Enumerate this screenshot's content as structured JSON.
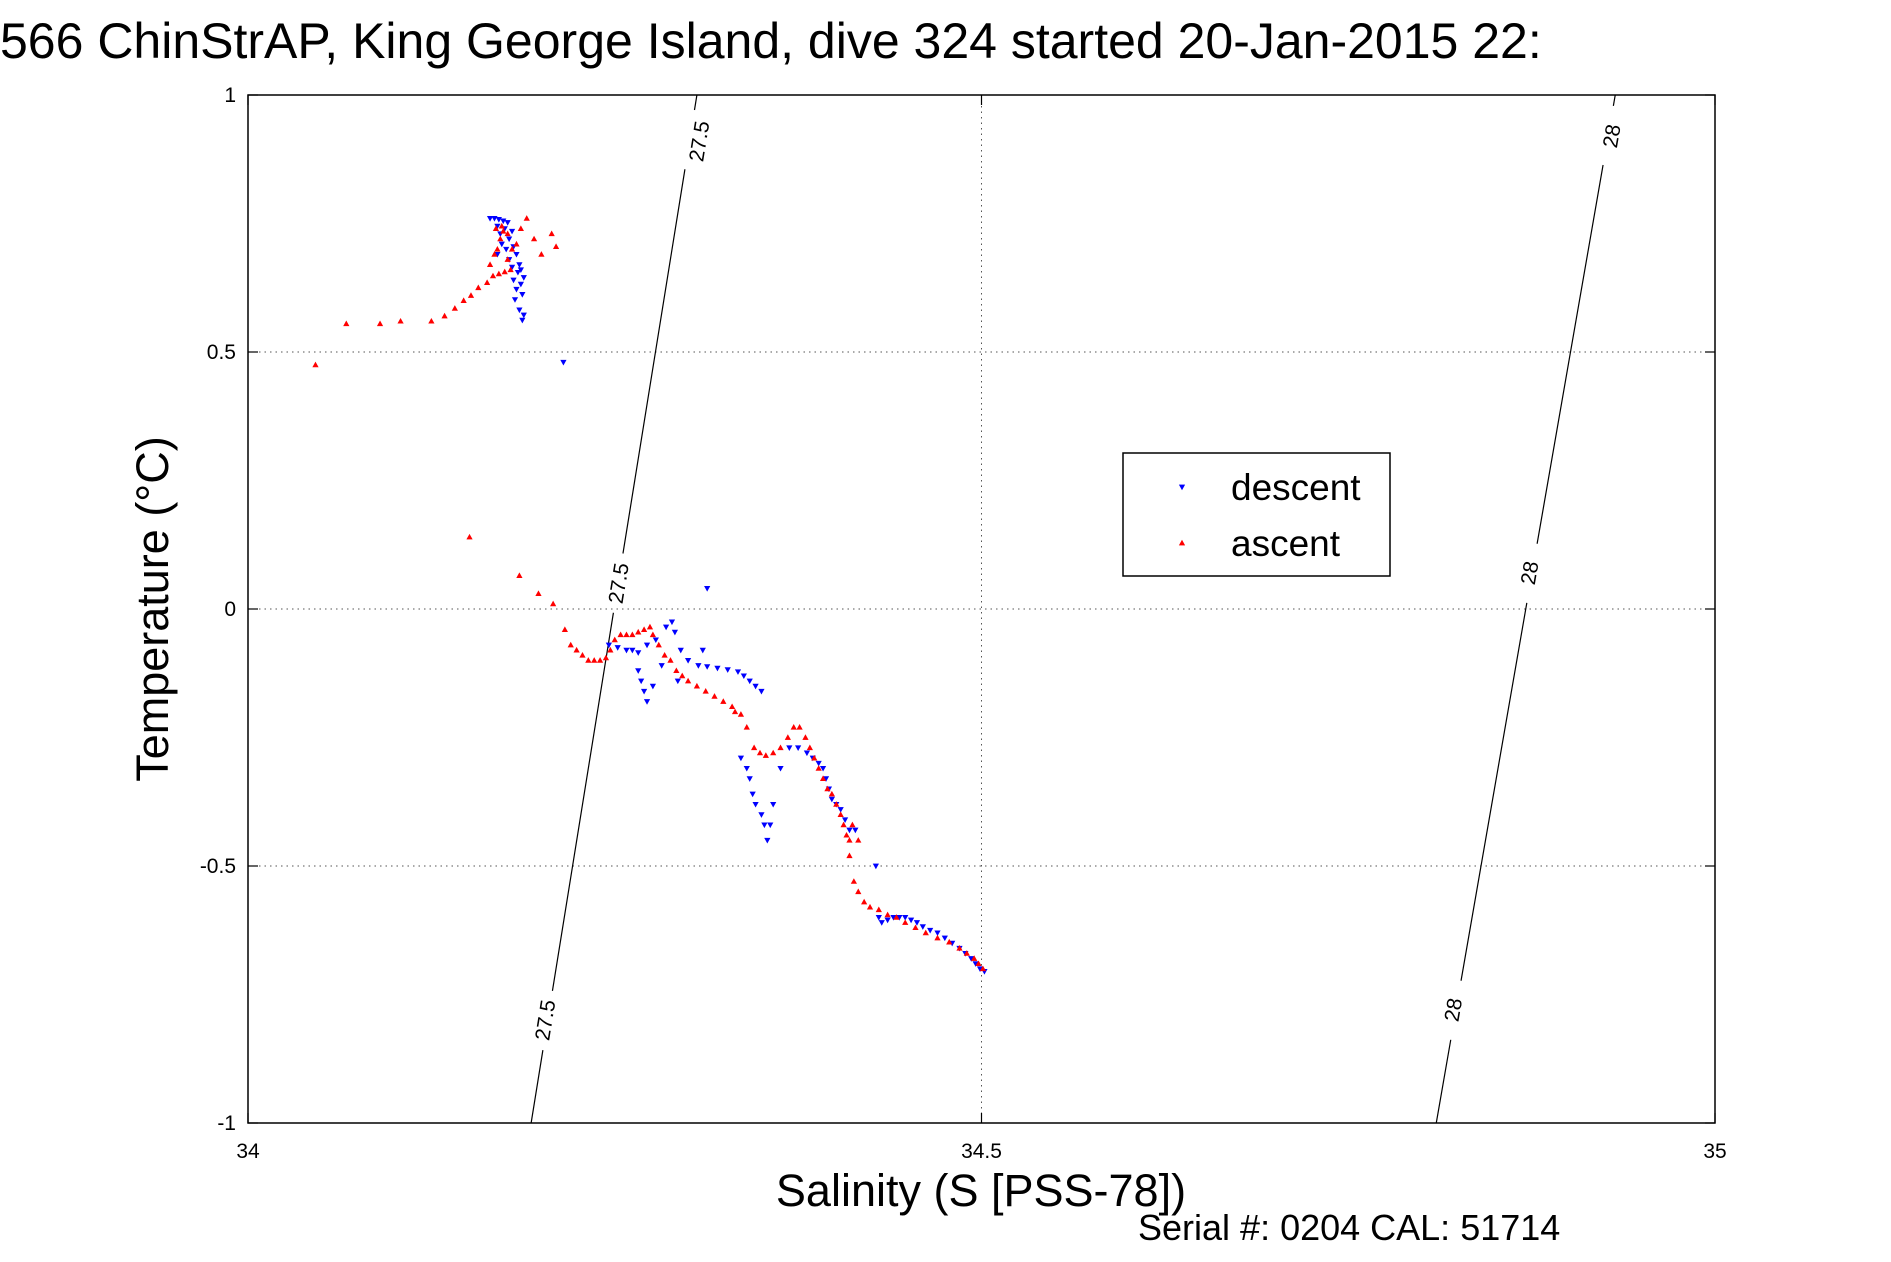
{
  "chart_data": {
    "type": "scatter",
    "title": "566 ChinStrAP, King George Island, dive 324 started 20-Jan-2015 22:",
    "xlabel": "Salinity (S [PSS-78])",
    "ylabel": "Temperature (°C)",
    "xlim": [
      34,
      35
    ],
    "ylim": [
      -1,
      1
    ],
    "xticks": [
      {
        "value": 34,
        "label": "34"
      },
      {
        "value": 34.5,
        "label": "34.5"
      },
      {
        "value": 35,
        "label": "35"
      }
    ],
    "yticks": [
      {
        "value": -1,
        "label": "-1"
      },
      {
        "value": -0.5,
        "label": "-0.5"
      },
      {
        "value": 0,
        "label": "0"
      },
      {
        "value": 0.5,
        "label": "0.5"
      },
      {
        "value": 1,
        "label": "1"
      }
    ],
    "grid": true,
    "legend_position": "right-center",
    "footer": "Serial #: 0204  CAL: 51714",
    "contours": [
      {
        "level": "27.5",
        "points": [
          [
            34.193,
            -1
          ],
          [
            34.306,
            1
          ]
        ],
        "labels": [
          {
            "x": 34.203,
            "y": -0.8
          },
          {
            "x": 34.253,
            "y": 0.05
          },
          {
            "x": 34.308,
            "y": 0.91
          }
        ]
      },
      {
        "level": "28",
        "points": [
          [
            34.81,
            -1
          ],
          [
            34.932,
            1
          ]
        ],
        "labels": [
          {
            "x": 34.822,
            "y": -0.78
          },
          {
            "x": 34.874,
            "y": 0.07
          },
          {
            "x": 34.93,
            "y": 0.92
          }
        ]
      }
    ],
    "series": [
      {
        "name": "descent",
        "marker": "triangle-down",
        "color": "#0000ff",
        "points": [
          [
            34.165,
            0.76
          ],
          [
            34.168,
            0.76
          ],
          [
            34.171,
            0.758
          ],
          [
            34.174,
            0.755
          ],
          [
            34.177,
            0.752
          ],
          [
            34.17,
            0.745
          ],
          [
            34.175,
            0.74
          ],
          [
            34.18,
            0.735
          ],
          [
            34.172,
            0.73
          ],
          [
            34.178,
            0.72
          ],
          [
            34.173,
            0.71
          ],
          [
            34.181,
            0.705
          ],
          [
            34.176,
            0.7
          ],
          [
            34.17,
            0.69
          ],
          [
            34.183,
            0.69
          ],
          [
            34.178,
            0.68
          ],
          [
            34.185,
            0.67
          ],
          [
            34.18,
            0.665
          ],
          [
            34.186,
            0.66
          ],
          [
            34.184,
            0.655
          ],
          [
            34.188,
            0.645
          ],
          [
            34.181,
            0.64
          ],
          [
            34.186,
            0.632
          ],
          [
            34.183,
            0.622
          ],
          [
            34.187,
            0.612
          ],
          [
            34.182,
            0.602
          ],
          [
            34.185,
            0.582
          ],
          [
            34.188,
            0.572
          ],
          [
            34.187,
            0.562
          ],
          [
            34.215,
            0.48
          ],
          [
            34.246,
            -0.07
          ],
          [
            34.252,
            -0.075
          ],
          [
            34.258,
            -0.08
          ],
          [
            34.262,
            -0.08
          ],
          [
            34.266,
            -0.085
          ],
          [
            34.272,
            -0.07
          ],
          [
            34.278,
            -0.06
          ],
          [
            34.285,
            -0.035
          ],
          [
            34.291,
            -0.045
          ],
          [
            34.289,
            -0.025
          ],
          [
            34.3,
            -0.1
          ],
          [
            34.307,
            -0.11
          ],
          [
            34.313,
            -0.112
          ],
          [
            34.32,
            -0.115
          ],
          [
            34.327,
            -0.118
          ],
          [
            34.334,
            -0.122
          ],
          [
            34.338,
            -0.13
          ],
          [
            34.342,
            -0.14
          ],
          [
            34.346,
            -0.15
          ],
          [
            34.35,
            -0.16
          ],
          [
            34.295,
            -0.08
          ],
          [
            34.31,
            -0.08
          ],
          [
            34.282,
            -0.11
          ],
          [
            34.266,
            -0.12
          ],
          [
            34.268,
            -0.14
          ],
          [
            34.27,
            -0.16
          ],
          [
            34.272,
            -0.18
          ],
          [
            34.276,
            -0.15
          ],
          [
            34.293,
            -0.14
          ],
          [
            34.313,
            0.04
          ],
          [
            34.336,
            -0.29
          ],
          [
            34.34,
            -0.31
          ],
          [
            34.342,
            -0.33
          ],
          [
            34.344,
            -0.36
          ],
          [
            34.346,
            -0.38
          ],
          [
            34.35,
            -0.4
          ],
          [
            34.352,
            -0.42
          ],
          [
            34.354,
            -0.45
          ],
          [
            34.356,
            -0.42
          ],
          [
            34.358,
            -0.38
          ],
          [
            34.363,
            -0.31
          ],
          [
            34.369,
            -0.27
          ],
          [
            34.375,
            -0.27
          ],
          [
            34.381,
            -0.28
          ],
          [
            34.385,
            -0.29
          ],
          [
            34.389,
            -0.3
          ],
          [
            34.392,
            -0.31
          ],
          [
            34.394,
            -0.33
          ],
          [
            34.396,
            -0.35
          ],
          [
            34.398,
            -0.37
          ],
          [
            34.401,
            -0.38
          ],
          [
            34.404,
            -0.39
          ],
          [
            34.407,
            -0.41
          ],
          [
            34.41,
            -0.43
          ],
          [
            34.414,
            -0.43
          ],
          [
            34.428,
            -0.5
          ],
          [
            34.43,
            -0.6
          ],
          [
            34.432,
            -0.61
          ],
          [
            34.436,
            -0.605
          ],
          [
            34.44,
            -0.6
          ],
          [
            34.444,
            -0.6
          ],
          [
            34.448,
            -0.6
          ],
          [
            34.452,
            -0.605
          ],
          [
            34.456,
            -0.61
          ],
          [
            34.46,
            -0.618
          ],
          [
            34.465,
            -0.625
          ],
          [
            34.47,
            -0.63
          ],
          [
            34.475,
            -0.64
          ],
          [
            34.48,
            -0.65
          ],
          [
            34.485,
            -0.66
          ],
          [
            34.489,
            -0.67
          ],
          [
            34.493,
            -0.68
          ],
          [
            34.496,
            -0.69
          ],
          [
            34.499,
            -0.7
          ],
          [
            34.502,
            -0.705
          ]
        ]
      },
      {
        "name": "ascent",
        "marker": "triangle-up",
        "color": "#ff0000",
        "points": [
          [
            34.046,
            0.475
          ],
          [
            34.067,
            0.555
          ],
          [
            34.09,
            0.555
          ],
          [
            34.104,
            0.56
          ],
          [
            34.125,
            0.56
          ],
          [
            34.134,
            0.57
          ],
          [
            34.141,
            0.585
          ],
          [
            34.147,
            0.6
          ],
          [
            34.152,
            0.61
          ],
          [
            34.157,
            0.625
          ],
          [
            34.163,
            0.635
          ],
          [
            34.167,
            0.648
          ],
          [
            34.171,
            0.652
          ],
          [
            34.175,
            0.656
          ],
          [
            34.179,
            0.66
          ],
          [
            34.165,
            0.67
          ],
          [
            34.168,
            0.69
          ],
          [
            34.17,
            0.7
          ],
          [
            34.172,
            0.72
          ],
          [
            34.174,
            0.735
          ],
          [
            34.169,
            0.74
          ],
          [
            34.173,
            0.745
          ],
          [
            34.177,
            0.73
          ],
          [
            34.18,
            0.7
          ],
          [
            34.177,
            0.68
          ],
          [
            34.183,
            0.71
          ],
          [
            34.186,
            0.74
          ],
          [
            34.19,
            0.76
          ],
          [
            34.195,
            0.72
          ],
          [
            34.2,
            0.69
          ],
          [
            34.207,
            0.73
          ],
          [
            34.21,
            0.705
          ],
          [
            34.151,
            0.14
          ],
          [
            34.185,
            0.065
          ],
          [
            34.198,
            0.03
          ],
          [
            34.208,
            0.01
          ],
          [
            34.216,
            -0.04
          ],
          [
            34.22,
            -0.07
          ],
          [
            34.224,
            -0.08
          ],
          [
            34.228,
            -0.09
          ],
          [
            34.232,
            -0.1
          ],
          [
            34.236,
            -0.1
          ],
          [
            34.24,
            -0.1
          ],
          [
            34.244,
            -0.095
          ],
          [
            34.247,
            -0.08
          ],
          [
            34.25,
            -0.06
          ],
          [
            34.254,
            -0.05
          ],
          [
            34.258,
            -0.05
          ],
          [
            34.262,
            -0.05
          ],
          [
            34.266,
            -0.045
          ],
          [
            34.27,
            -0.04
          ],
          [
            34.274,
            -0.035
          ],
          [
            34.276,
            -0.05
          ],
          [
            34.28,
            -0.07
          ],
          [
            34.284,
            -0.09
          ],
          [
            34.288,
            -0.1
          ],
          [
            34.292,
            -0.12
          ],
          [
            34.296,
            -0.13
          ],
          [
            34.3,
            -0.14
          ],
          [
            34.306,
            -0.15
          ],
          [
            34.312,
            -0.16
          ],
          [
            34.318,
            -0.17
          ],
          [
            34.324,
            -0.18
          ],
          [
            34.33,
            -0.19
          ],
          [
            34.336,
            -0.205
          ],
          [
            34.332,
            -0.2
          ],
          [
            34.34,
            -0.23
          ],
          [
            34.345,
            -0.27
          ],
          [
            34.349,
            -0.28
          ],
          [
            34.353,
            -0.285
          ],
          [
            34.358,
            -0.28
          ],
          [
            34.363,
            -0.27
          ],
          [
            34.368,
            -0.25
          ],
          [
            34.372,
            -0.23
          ],
          [
            34.376,
            -0.23
          ],
          [
            34.38,
            -0.25
          ],
          [
            34.383,
            -0.27
          ],
          [
            34.386,
            -0.29
          ],
          [
            34.389,
            -0.31
          ],
          [
            34.392,
            -0.33
          ],
          [
            34.395,
            -0.35
          ],
          [
            34.398,
            -0.36
          ],
          [
            34.401,
            -0.38
          ],
          [
            34.404,
            -0.4
          ],
          [
            34.406,
            -0.42
          ],
          [
            34.408,
            -0.44
          ],
          [
            34.41,
            -0.45
          ],
          [
            34.412,
            -0.42
          ],
          [
            34.416,
            -0.45
          ],
          [
            34.41,
            -0.48
          ],
          [
            34.413,
            -0.53
          ],
          [
            34.416,
            -0.55
          ],
          [
            34.42,
            -0.57
          ],
          [
            34.424,
            -0.58
          ],
          [
            34.43,
            -0.585
          ],
          [
            34.436,
            -0.595
          ],
          [
            34.442,
            -0.6
          ],
          [
            34.448,
            -0.61
          ],
          [
            34.455,
            -0.62
          ],
          [
            34.462,
            -0.63
          ],
          [
            34.47,
            -0.64
          ],
          [
            34.478,
            -0.648
          ],
          [
            34.485,
            -0.66
          ],
          [
            34.49,
            -0.67
          ],
          [
            34.495,
            -0.68
          ],
          [
            34.498,
            -0.69
          ],
          [
            34.501,
            -0.7
          ]
        ]
      }
    ]
  }
}
